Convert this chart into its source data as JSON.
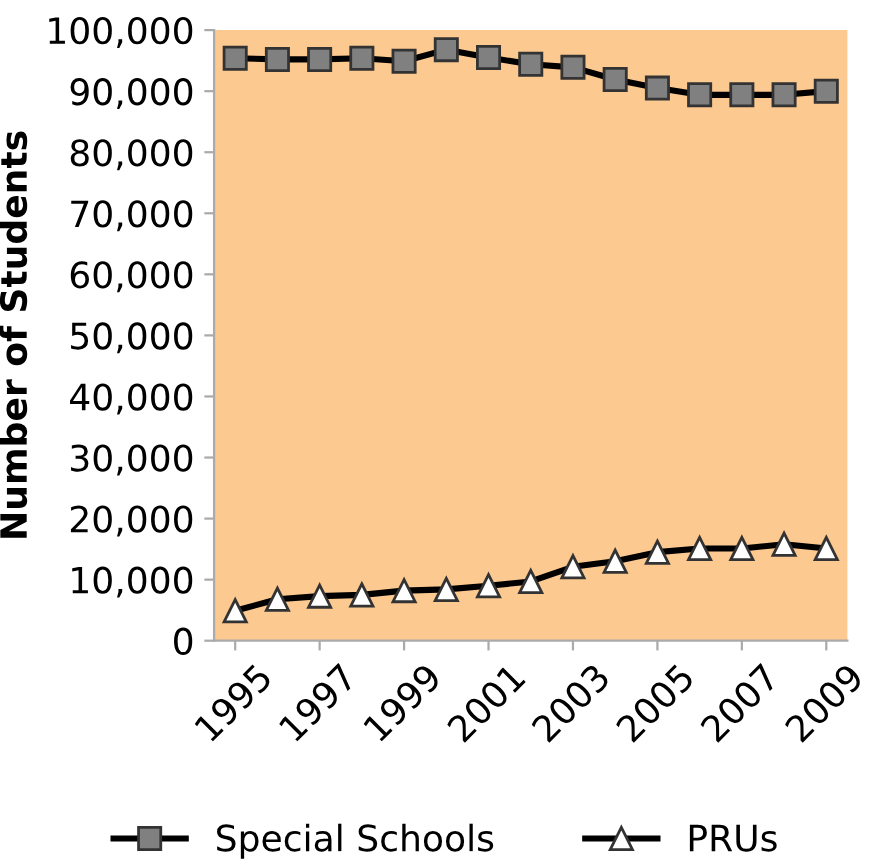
{
  "chart_data": {
    "type": "line",
    "ylabel": "Number of Students",
    "x": [
      1995,
      1996,
      1997,
      1998,
      1999,
      2000,
      2001,
      2002,
      2003,
      2004,
      2005,
      2006,
      2007,
      2008,
      2009
    ],
    "series": [
      {
        "name": "Special Schools",
        "color": "#808080",
        "marker": "square",
        "values": [
          95400,
          95200,
          95200,
          95400,
          94900,
          96800,
          95500,
          94400,
          93900,
          91900,
          90500,
          89400,
          89400,
          89400,
          90000
        ]
      },
      {
        "name": "PRUs",
        "color": "#ffffff",
        "marker": "triangle",
        "values": [
          4900,
          6800,
          7300,
          7500,
          8200,
          8400,
          9000,
          9700,
          12100,
          13000,
          14500,
          15100,
          15100,
          15800,
          15100
        ]
      }
    ],
    "xlim": [
      1994.5,
      2009.5
    ],
    "xticks": [
      1995,
      1997,
      1999,
      2001,
      2003,
      2005,
      2007,
      2009
    ],
    "ylim": [
      0,
      100000
    ],
    "yticks": [
      {
        "value": 0,
        "label": "0"
      },
      {
        "value": 10000,
        "label": "10,000"
      },
      {
        "value": 20000,
        "label": "20,000"
      },
      {
        "value": 30000,
        "label": "30,000"
      },
      {
        "value": 40000,
        "label": "40,000"
      },
      {
        "value": 50000,
        "label": "50,000"
      },
      {
        "value": 60000,
        "label": "60,000"
      },
      {
        "value": 70000,
        "label": "70,000"
      },
      {
        "value": 80000,
        "label": "80,000"
      },
      {
        "value": 90000,
        "label": "90,000"
      },
      {
        "value": 100000,
        "label": "100,000"
      }
    ],
    "grid": false,
    "legend": "bottom",
    "line_style": "solid"
  }
}
